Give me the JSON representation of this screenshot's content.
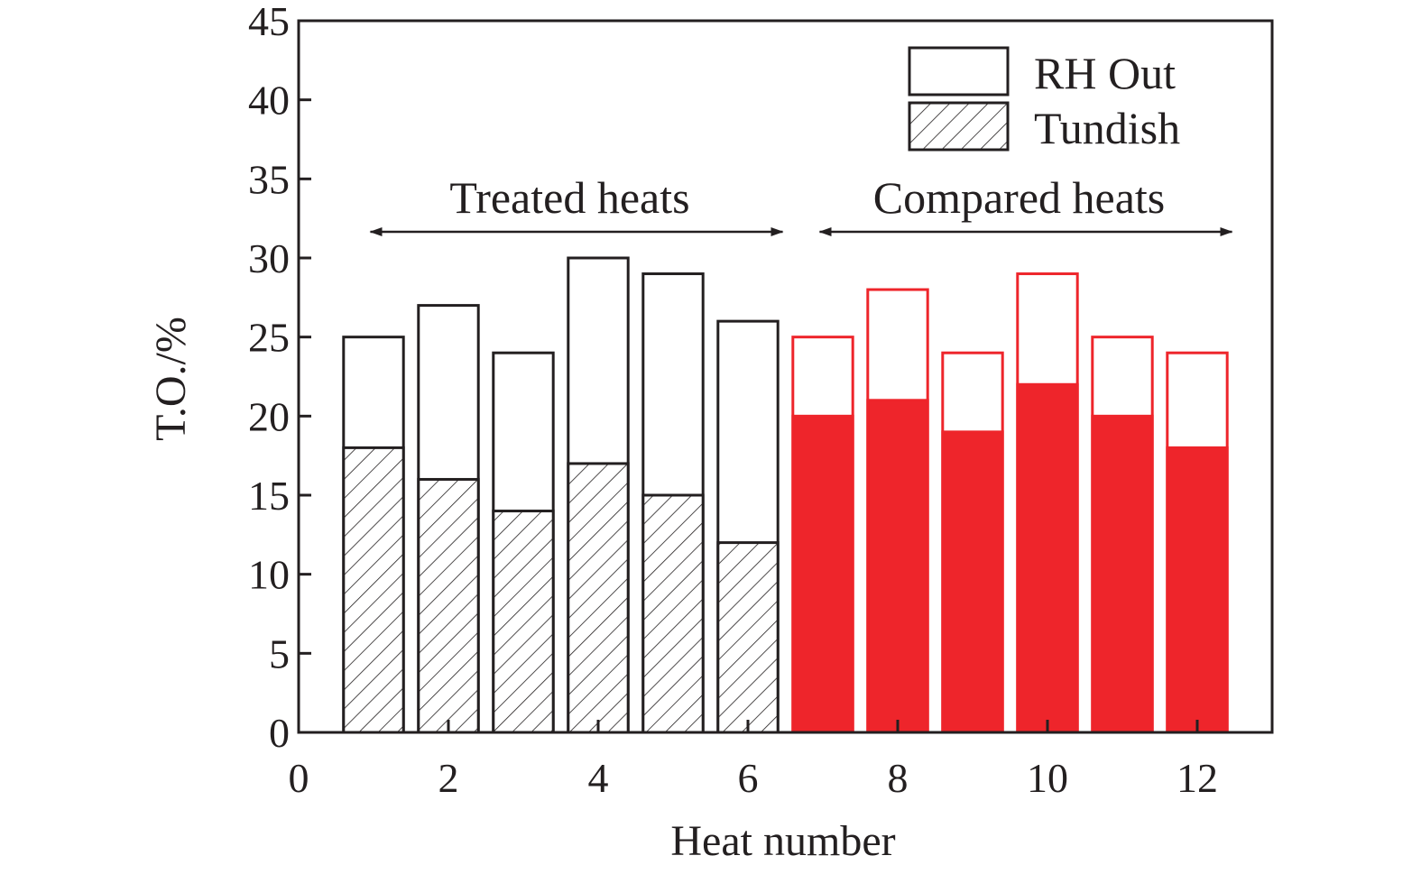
{
  "chart_data": {
    "type": "bar",
    "stacked": "overlay",
    "xlabel": "Heat number",
    "ylabel": "T.O./%",
    "xlim": [
      0,
      13
    ],
    "ylim": [
      0,
      45
    ],
    "xticks": [
      0,
      2,
      4,
      6,
      8,
      10,
      12
    ],
    "yticks": [
      0,
      5,
      10,
      15,
      20,
      25,
      30,
      35,
      40,
      45
    ],
    "x": [
      1,
      2,
      3,
      4,
      5,
      6,
      7,
      8,
      9,
      10,
      11,
      12
    ],
    "series": [
      {
        "name": "RH Out",
        "values": [
          25,
          27,
          24,
          30,
          29,
          26,
          25,
          28,
          24,
          29,
          25,
          24
        ]
      },
      {
        "name": "Tundish",
        "values": [
          18,
          16,
          14,
          17,
          15,
          12,
          20,
          21,
          19,
          22,
          20,
          18
        ]
      }
    ],
    "groups": [
      {
        "label": "Treated heats",
        "from": 1,
        "to": 6,
        "color": "#231f20",
        "tundish_fill": "hatch"
      },
      {
        "label": "Compared heats",
        "from": 7,
        "to": 12,
        "color": "#ee252b",
        "tundish_fill": "solid"
      }
    ],
    "legend_position": "top-right",
    "grid": false,
    "colors": {
      "axis": "#231f20",
      "compared": "#ee252b"
    }
  }
}
